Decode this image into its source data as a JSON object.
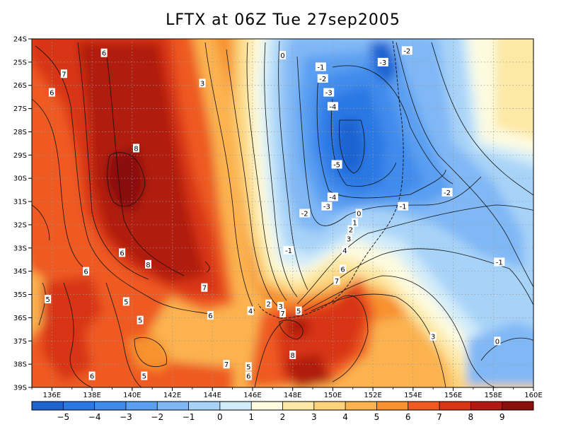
{
  "title": "LFTX at 06Z Tue 27sep2005",
  "chart_data": {
    "type": "heatmap",
    "title": "LFTX at 06Z Tue 27sep2005",
    "x_range": [
      135,
      160
    ],
    "y_range": [
      -39,
      -24
    ],
    "x_ticks": [
      "136E",
      "138E",
      "140E",
      "142E",
      "144E",
      "146E",
      "148E",
      "150E",
      "152E",
      "154E",
      "156E",
      "158E",
      "160E"
    ],
    "y_ticks": [
      "24S",
      "25S",
      "26S",
      "27S",
      "28S",
      "29S",
      "30S",
      "31S",
      "32S",
      "33S",
      "34S",
      "35S",
      "36S",
      "37S",
      "38S",
      "39S"
    ],
    "colorbar": {
      "labels": [
        "-5",
        "-4",
        "-3",
        "-2",
        "-1",
        "0",
        "1",
        "2",
        "3",
        "4",
        "5",
        "6",
        "7",
        "8",
        "9"
      ],
      "colors": [
        "#1e63d0",
        "#2b78e4",
        "#3f8bec",
        "#5a9ff2",
        "#80b8f6",
        "#a8d3f8",
        "#d2ecf9",
        "#fdfbe0",
        "#fde9a6",
        "#fcd37a",
        "#fbb24f",
        "#f7922e",
        "#ee5a20",
        "#d83416",
        "#b01a10",
        "#8a0f0a"
      ]
    },
    "contour_labels": [
      {
        "text": "6",
        "lon": 138.6,
        "lat": -24.6
      },
      {
        "text": "7",
        "lon": 136.6,
        "lat": -25.5
      },
      {
        "text": "6",
        "lon": 136.0,
        "lat": -26.3
      },
      {
        "text": "3",
        "lon": 143.5,
        "lat": -25.9
      },
      {
        "text": "8",
        "lon": 140.2,
        "lat": -28.7
      },
      {
        "text": "0",
        "lon": 147.5,
        "lat": -24.7
      },
      {
        "text": "-1",
        "lon": 149.4,
        "lat": -25.2
      },
      {
        "text": "-2",
        "lon": 149.5,
        "lat": -25.7
      },
      {
        "text": "-3",
        "lon": 152.5,
        "lat": -25.0
      },
      {
        "text": "-2",
        "lon": 153.7,
        "lat": -24.5
      },
      {
        "text": "-3",
        "lon": 149.8,
        "lat": -26.3
      },
      {
        "text": "-4",
        "lon": 150.0,
        "lat": -26.9
      },
      {
        "text": "-5",
        "lon": 150.2,
        "lat": -29.4
      },
      {
        "text": "-4",
        "lon": 150.0,
        "lat": -30.8
      },
      {
        "text": "-3",
        "lon": 149.7,
        "lat": -31.2
      },
      {
        "text": "-2",
        "lon": 148.6,
        "lat": -31.5
      },
      {
        "text": "-2",
        "lon": 155.7,
        "lat": -30.6
      },
      {
        "text": "-1",
        "lon": 153.5,
        "lat": -31.2
      },
      {
        "text": "0",
        "lon": 151.3,
        "lat": -31.5
      },
      {
        "text": "1",
        "lon": 151.1,
        "lat": -31.9
      },
      {
        "text": "2",
        "lon": 150.9,
        "lat": -32.2
      },
      {
        "text": "3",
        "lon": 150.8,
        "lat": -32.6
      },
      {
        "text": "4",
        "lon": 150.6,
        "lat": -33.1
      },
      {
        "text": "6",
        "lon": 150.5,
        "lat": -33.9
      },
      {
        "text": "7",
        "lon": 150.2,
        "lat": -34.4
      },
      {
        "text": "-1",
        "lon": 147.8,
        "lat": -33.1
      },
      {
        "text": "-1",
        "lon": 158.3,
        "lat": -33.6
      },
      {
        "text": "6",
        "lon": 139.5,
        "lat": -33.2
      },
      {
        "text": "6",
        "lon": 137.7,
        "lat": -34.0
      },
      {
        "text": "8",
        "lon": 140.8,
        "lat": -33.7
      },
      {
        "text": "7",
        "lon": 143.6,
        "lat": -34.7
      },
      {
        "text": "6",
        "lon": 143.9,
        "lat": -35.9
      },
      {
        "text": "5",
        "lon": 135.8,
        "lat": -35.2
      },
      {
        "text": "5",
        "lon": 139.7,
        "lat": -35.3
      },
      {
        "text": "5",
        "lon": 140.4,
        "lat": -36.1
      },
      {
        "text": "4",
        "lon": 145.9,
        "lat": -35.7
      },
      {
        "text": "2",
        "lon": 146.8,
        "lat": -35.4
      },
      {
        "text": "3",
        "lon": 147.4,
        "lat": -35.5
      },
      {
        "text": "7",
        "lon": 147.5,
        "lat": -35.8
      },
      {
        "text": "5",
        "lon": 148.3,
        "lat": -35.7
      },
      {
        "text": "3",
        "lon": 155.0,
        "lat": -36.8
      },
      {
        "text": "0",
        "lon": 158.2,
        "lat": -37.0
      },
      {
        "text": "8",
        "lon": 148.0,
        "lat": -37.6
      },
      {
        "text": "7",
        "lon": 144.7,
        "lat": -38.0
      },
      {
        "text": "5",
        "lon": 145.8,
        "lat": -38.1
      },
      {
        "text": "6",
        "lon": 145.8,
        "lat": -38.5
      },
      {
        "text": "6",
        "lon": 138.0,
        "lat": -38.5
      },
      {
        "text": "5",
        "lon": 140.6,
        "lat": -38.5
      }
    ]
  }
}
